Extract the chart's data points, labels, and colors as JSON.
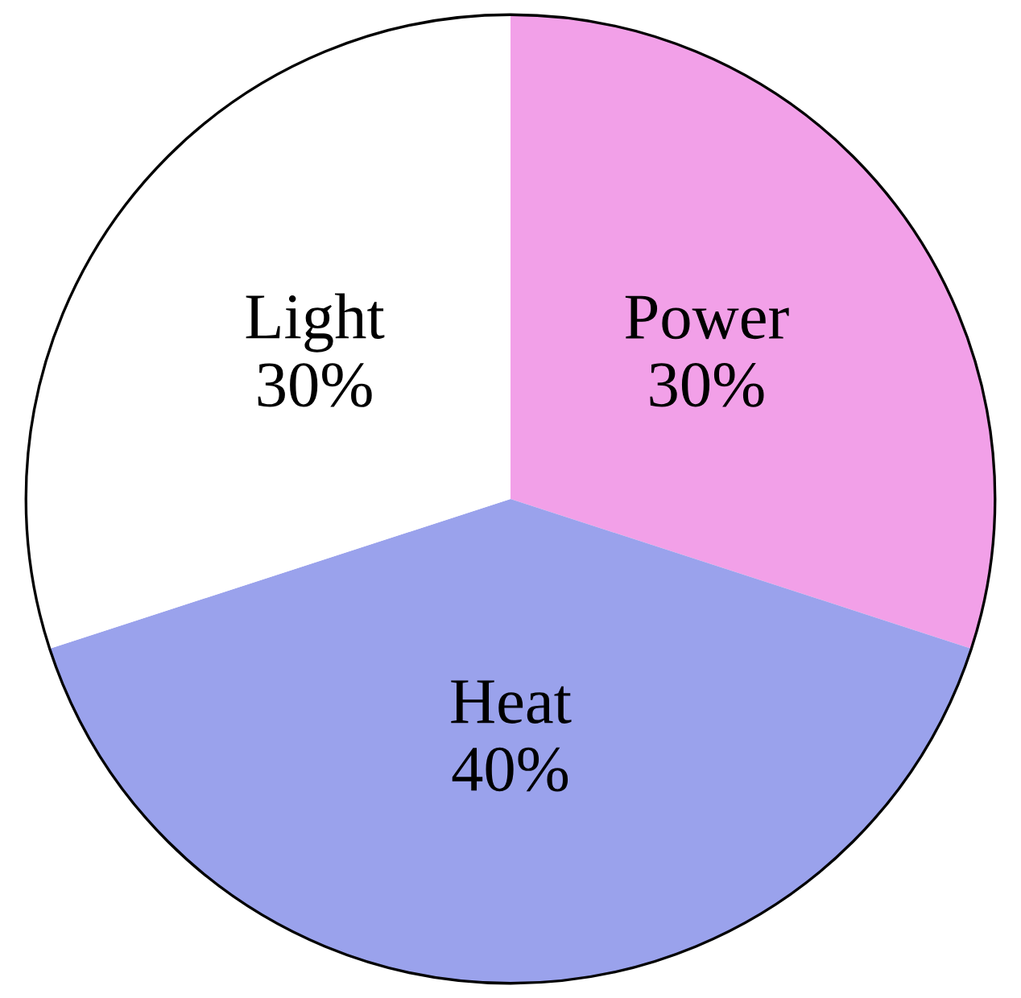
{
  "chart_data": {
    "type": "pie",
    "categories": [
      "Power",
      "Heat",
      "Light"
    ],
    "values": [
      30,
      40,
      30
    ],
    "colors": [
      "#f2a0e8",
      "#9aa2ec",
      "#ffffff"
    ],
    "value_labels": [
      "30%",
      "40%",
      "30%"
    ]
  }
}
